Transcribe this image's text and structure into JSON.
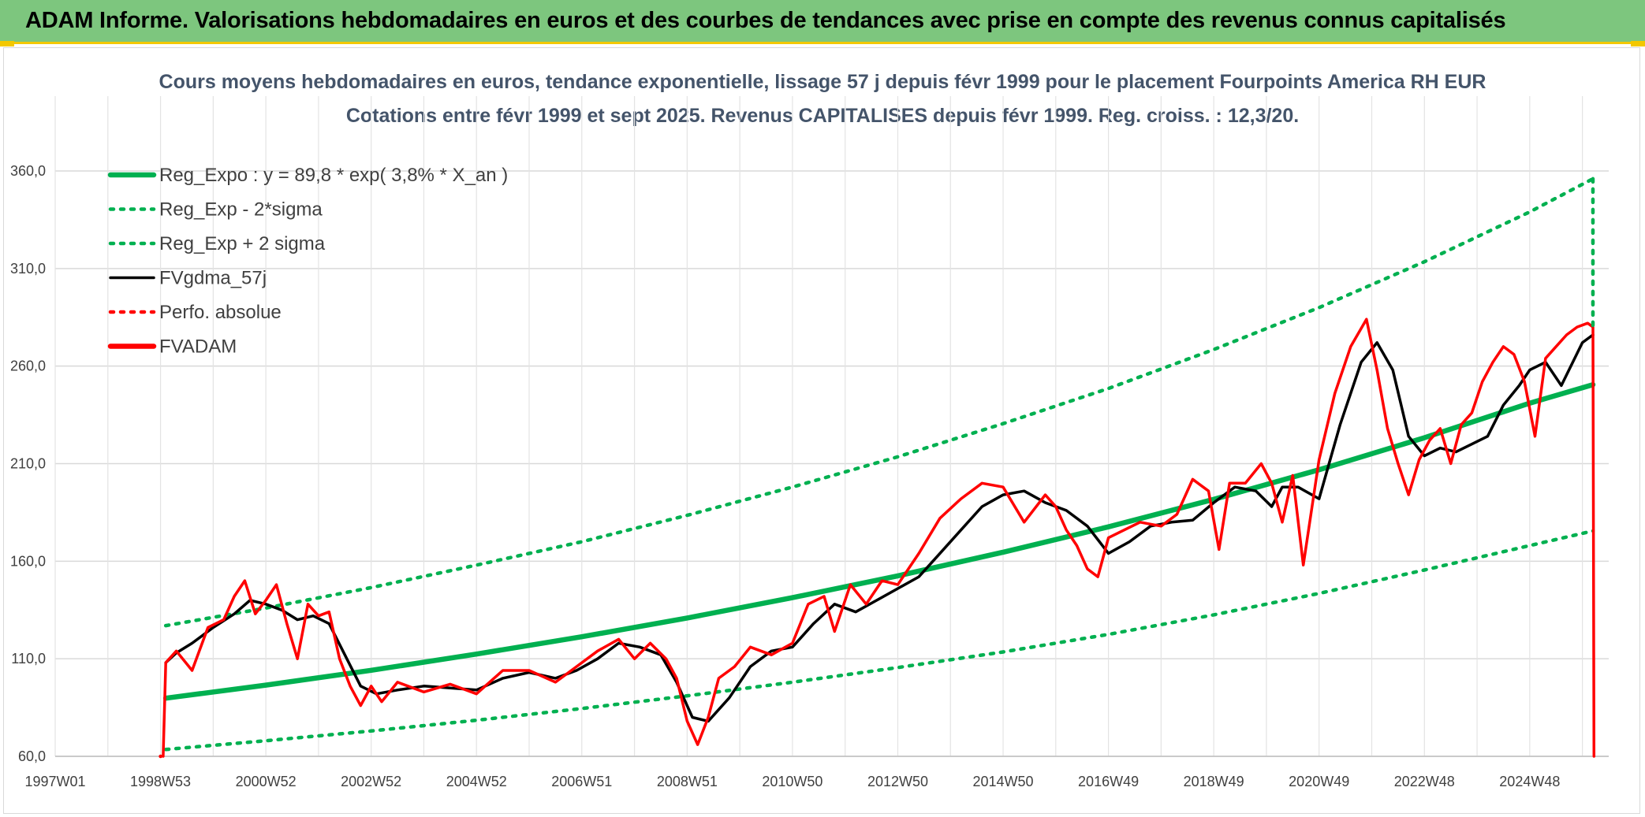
{
  "header": {
    "title": "ADAM Informe. Valorisations hebdomadaires en euros et des courbes de tendances avec prise en compte des revenus connus capitalisés"
  },
  "colors": {
    "header_bg": "#7dc67e",
    "accent_yellow": "#f3c800",
    "trend_green": "#00b050",
    "smooth_black": "#000000",
    "price_red": "#ff0000"
  },
  "chart_data": {
    "type": "line",
    "title": "Cours moyens hebdomadaires en euros, tendance exponentielle, lissage 57 j depuis févr 1999 pour le placement Fourpoints America RH EUR",
    "subtitle": "Cotations entre févr 1999 et sept 2025. Revenus CAPITALISES depuis févr 1999. Reg. croiss. : 12,3/20.",
    "xlabel": "",
    "ylabel": "",
    "ylim": [
      60,
      360
    ],
    "xlim": [
      1997.0,
      2026.5
    ],
    "grid": true,
    "legend_position": "top-left",
    "y_ticks": [
      "60,0",
      "110,0",
      "160,0",
      "210,0",
      "260,0",
      "310,0",
      "360,0"
    ],
    "y_tick_values": [
      60,
      110,
      160,
      210,
      260,
      310,
      360
    ],
    "x_ticks": [
      "1997W01",
      "1998W53",
      "2000W52",
      "2002W52",
      "2004W52",
      "2006W51",
      "2008W51",
      "2010W50",
      "2012W50",
      "2014W50",
      "2016W49",
      "2018W49",
      "2020W49",
      "2022W48",
      "2024W48"
    ],
    "x_tick_values": [
      1997.0,
      1999.0,
      2001.0,
      2003.0,
      2005.0,
      2007.0,
      2009.0,
      2011.0,
      2013.0,
      2015.0,
      2017.0,
      2019.0,
      2021.0,
      2023.0,
      2025.0
    ],
    "series": [
      {
        "name": "Reg_Expo : y = 89,8 * exp( 3,8% *  X_an )",
        "style": "solid-thick",
        "color": "#00b050",
        "x": [
          1999.1,
          2001.0,
          2003.0,
          2005.0,
          2007.0,
          2009.0,
          2011.0,
          2013.0,
          2015.0,
          2017.0,
          2019.0,
          2021.0,
          2023.0,
          2025.0,
          2026.2
        ],
        "values": [
          89.8,
          96.5,
          104.1,
          112.4,
          121.3,
          130.9,
          141.3,
          152.5,
          164.6,
          177.6,
          191.7,
          206.9,
          223.3,
          241.0,
          250.5
        ]
      },
      {
        "name": "Reg_Exp - 2*sigma",
        "style": "dotted",
        "color": "#00b050",
        "x": [
          1999.1,
          2001.0,
          2003.0,
          2005.0,
          2007.0,
          2009.0,
          2011.0,
          2013.0,
          2015.0,
          2017.0,
          2019.0,
          2021.0,
          2023.0,
          2025.0,
          2026.2
        ],
        "values": [
          63.5,
          68.0,
          73.0,
          78.5,
          84.5,
          91.0,
          98.0,
          105.5,
          113.5,
          122.5,
          132.5,
          143.5,
          155.5,
          168.0,
          175.5
        ]
      },
      {
        "name": "Reg_Exp + 2 sigma",
        "style": "dotted",
        "color": "#00b050",
        "x": [
          1999.1,
          2001.0,
          2003.0,
          2005.0,
          2007.0,
          2009.0,
          2011.0,
          2013.0,
          2015.0,
          2017.0,
          2019.0,
          2021.0,
          2023.0,
          2025.0,
          2026.2
        ],
        "values": [
          127.0,
          136.0,
          146.5,
          158.0,
          170.0,
          183.5,
          198.0,
          213.5,
          230.5,
          248.5,
          268.5,
          290.0,
          313.5,
          339.0,
          356.0
        ]
      },
      {
        "name": "FVgdma_57j",
        "style": "solid",
        "color": "#000000",
        "x": [
          1999.1,
          1999.3,
          1999.6,
          2000.0,
          2000.4,
          2000.7,
          2001.0,
          2001.3,
          2001.6,
          2001.9,
          2002.2,
          2002.5,
          2002.8,
          2003.1,
          2003.5,
          2004.0,
          2004.5,
          2005.0,
          2005.5,
          2006.0,
          2006.5,
          2006.9,
          2007.3,
          2007.7,
          2008.1,
          2008.5,
          2008.8,
          2009.1,
          2009.4,
          2009.8,
          2010.2,
          2010.6,
          2011.0,
          2011.4,
          2011.8,
          2012.2,
          2012.6,
          2013.0,
          2013.4,
          2013.8,
          2014.2,
          2014.6,
          2015.0,
          2015.4,
          2015.8,
          2016.2,
          2016.6,
          2017.0,
          2017.4,
          2017.8,
          2018.2,
          2018.6,
          2019.0,
          2019.4,
          2019.8,
          2020.1,
          2020.3,
          2020.6,
          2021.0,
          2021.4,
          2021.8,
          2022.1,
          2022.4,
          2022.7,
          2023.0,
          2023.3,
          2023.6,
          2023.9,
          2024.2,
          2024.5,
          2024.8,
          2025.0,
          2025.3,
          2025.6,
          2026.0,
          2026.2
        ],
        "values": [
          108,
          113,
          118,
          126,
          133,
          140,
          138,
          135,
          130,
          132,
          128,
          112,
          96,
          92,
          94,
          96,
          95,
          94,
          100,
          103,
          100,
          104,
          110,
          118,
          116,
          112,
          98,
          80,
          78,
          90,
          106,
          114,
          116,
          128,
          138,
          134,
          140,
          146,
          152,
          164,
          176,
          188,
          194,
          196,
          190,
          186,
          178,
          164,
          170,
          178,
          180,
          181,
          190,
          198,
          196,
          188,
          198,
          198,
          192,
          230,
          262,
          272,
          258,
          224,
          214,
          218,
          216,
          220,
          224,
          240,
          250,
          258,
          262,
          250,
          272,
          276
        ]
      },
      {
        "name": "Perfo. absolue",
        "style": "dotted",
        "color": "#ff0000",
        "x": [
          1999.0,
          1999.0
        ],
        "values": [
          60,
          60
        ]
      },
      {
        "name": "FVADAM",
        "style": "solid-thick",
        "color": "#ff0000",
        "x": [
          1999.05,
          1999.1,
          1999.3,
          1999.6,
          1999.9,
          2000.2,
          2000.4,
          2000.6,
          2000.8,
          2001.0,
          2001.2,
          2001.4,
          2001.6,
          2001.8,
          2002.0,
          2002.2,
          2002.4,
          2002.6,
          2002.8,
          2003.0,
          2003.2,
          2003.5,
          2004.0,
          2004.5,
          2005.0,
          2005.5,
          2006.0,
          2006.5,
          2006.9,
          2007.3,
          2007.7,
          2008.0,
          2008.3,
          2008.6,
          2008.8,
          2009.0,
          2009.2,
          2009.4,
          2009.6,
          2009.9,
          2010.2,
          2010.6,
          2011.0,
          2011.3,
          2011.6,
          2011.8,
          2012.1,
          2012.4,
          2012.7,
          2013.0,
          2013.4,
          2013.8,
          2014.2,
          2014.6,
          2015.0,
          2015.4,
          2015.8,
          2016.0,
          2016.2,
          2016.4,
          2016.6,
          2016.8,
          2017.0,
          2017.3,
          2017.6,
          2018.0,
          2018.3,
          2018.6,
          2018.9,
          2019.1,
          2019.3,
          2019.6,
          2019.9,
          2020.1,
          2020.3,
          2020.5,
          2020.7,
          2021.0,
          2021.3,
          2021.6,
          2021.9,
          2022.1,
          2022.3,
          2022.5,
          2022.7,
          2022.9,
          2023.1,
          2023.3,
          2023.5,
          2023.7,
          2023.9,
          2024.1,
          2024.3,
          2024.5,
          2024.7,
          2024.9,
          2025.1,
          2025.3,
          2025.5,
          2025.7,
          2025.9,
          2026.1,
          2026.2,
          2026.22
        ],
        "values": [
          60,
          108,
          114,
          104,
          126,
          130,
          142,
          150,
          133,
          140,
          148,
          128,
          110,
          138,
          132,
          134,
          110,
          96,
          86,
          96,
          88,
          98,
          93,
          97,
          92,
          104,
          104,
          98,
          106,
          114,
          120,
          110,
          118,
          110,
          100,
          78,
          66,
          80,
          100,
          106,
          116,
          112,
          118,
          138,
          142,
          124,
          148,
          138,
          150,
          148,
          164,
          182,
          192,
          200,
          198,
          180,
          194,
          188,
          176,
          168,
          156,
          152,
          172,
          176,
          180,
          178,
          184,
          202,
          196,
          166,
          200,
          200,
          210,
          200,
          180,
          204,
          158,
          212,
          246,
          270,
          284,
          258,
          228,
          210,
          194,
          212,
          222,
          228,
          210,
          230,
          236,
          252,
          262,
          270,
          266,
          252,
          224,
          264,
          270,
          276,
          280,
          282,
          280,
          60
        ]
      }
    ]
  }
}
